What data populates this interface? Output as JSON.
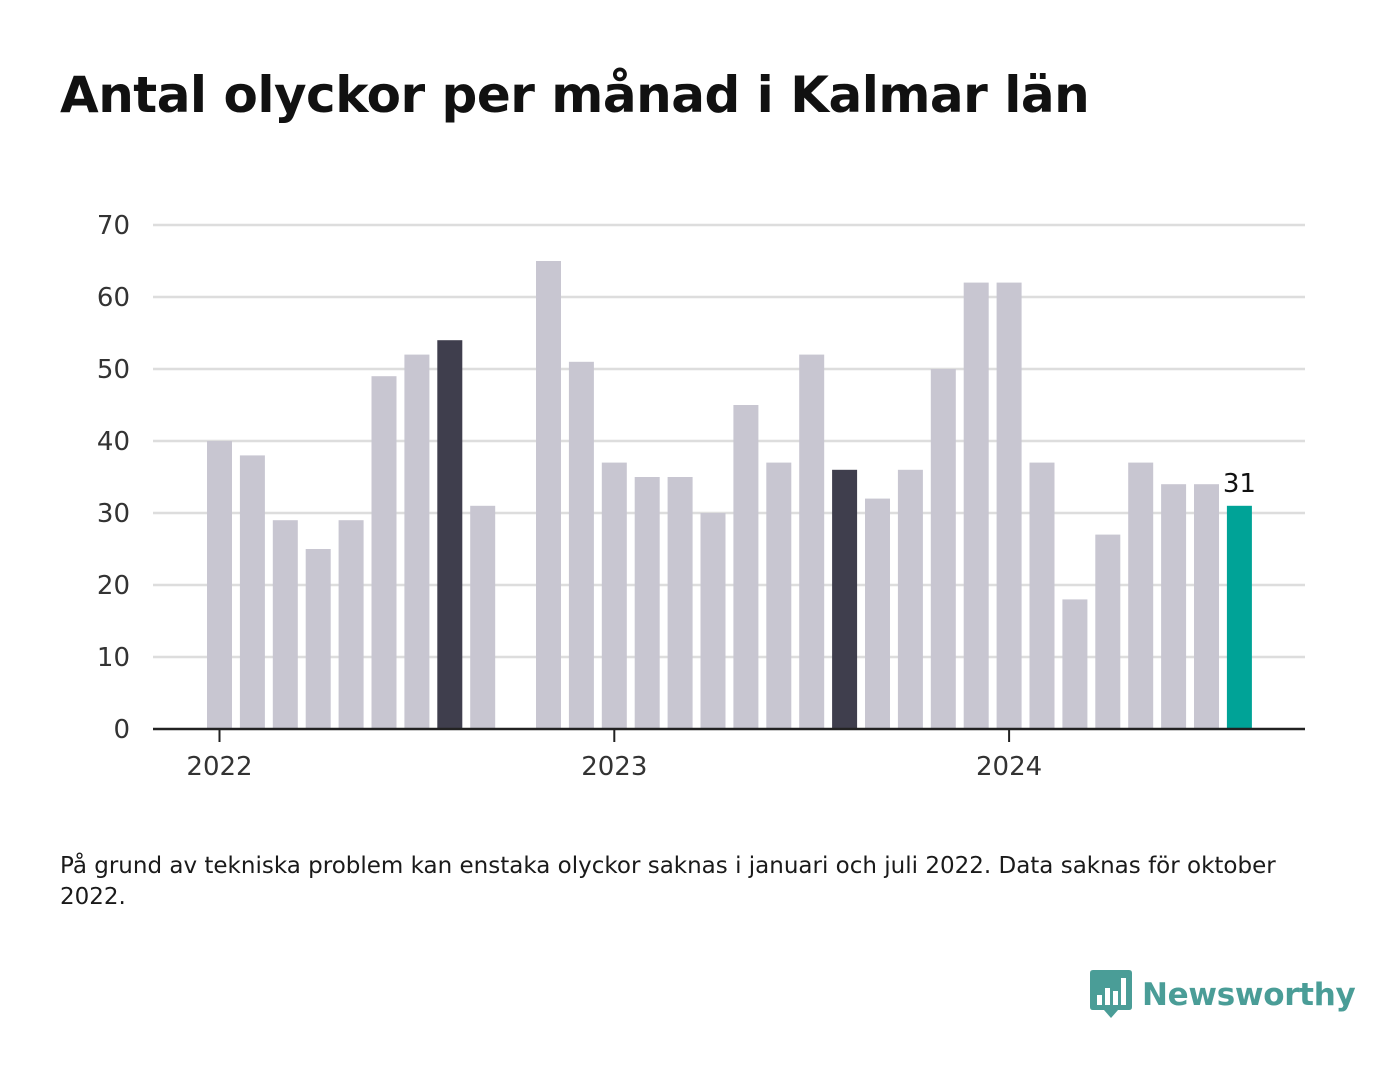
{
  "title": "Antal olyckor per månad i Kalmar län",
  "note": "På grund av tekniska problem kan enstaka olyckor saknas i januari och juli 2022. Data saknas för oktober 2022.",
  "brand": {
    "name": "Newsworthy",
    "icon": "newsworthy-logo-icon"
  },
  "colors": {
    "default": "#c8c6d1",
    "highlight": "#3f3e4d",
    "latest": "#00a397",
    "grid": "#dddddd",
    "axis": "#222222"
  },
  "chart_data": {
    "type": "bar",
    "x": [
      "2022-01",
      "2022-02",
      "2022-03",
      "2022-04",
      "2022-05",
      "2022-06",
      "2022-07",
      "2022-08",
      "2022-09",
      "2022-10",
      "2022-11",
      "2022-12",
      "2023-01",
      "2023-02",
      "2023-03",
      "2023-04",
      "2023-05",
      "2023-06",
      "2023-07",
      "2023-08",
      "2023-09",
      "2023-10",
      "2023-11",
      "2023-12",
      "2024-01",
      "2024-02",
      "2024-03",
      "2024-04",
      "2024-05",
      "2024-06",
      "2024-07",
      "2024-08"
    ],
    "values": [
      40,
      38,
      29,
      25,
      29,
      49,
      52,
      54,
      31,
      null,
      65,
      51,
      37,
      35,
      35,
      30,
      45,
      37,
      52,
      36,
      32,
      36,
      50,
      62,
      62,
      37,
      18,
      27,
      37,
      34,
      34,
      31
    ],
    "highlight": [
      "2022-08",
      "2023-08"
    ],
    "latest": "2024-08",
    "data_labels": [
      {
        "x": "2024-08",
        "text": "31"
      }
    ],
    "xticks": [
      {
        "x": "2022-01",
        "label": "2022"
      },
      {
        "x": "2023-01",
        "label": "2023"
      },
      {
        "x": "2024-01",
        "label": "2024"
      }
    ],
    "yticks": [
      0,
      10,
      20,
      30,
      40,
      50,
      60,
      70
    ],
    "ylim": [
      0,
      70
    ],
    "grid": true,
    "xlabel": "",
    "ylabel": ""
  }
}
